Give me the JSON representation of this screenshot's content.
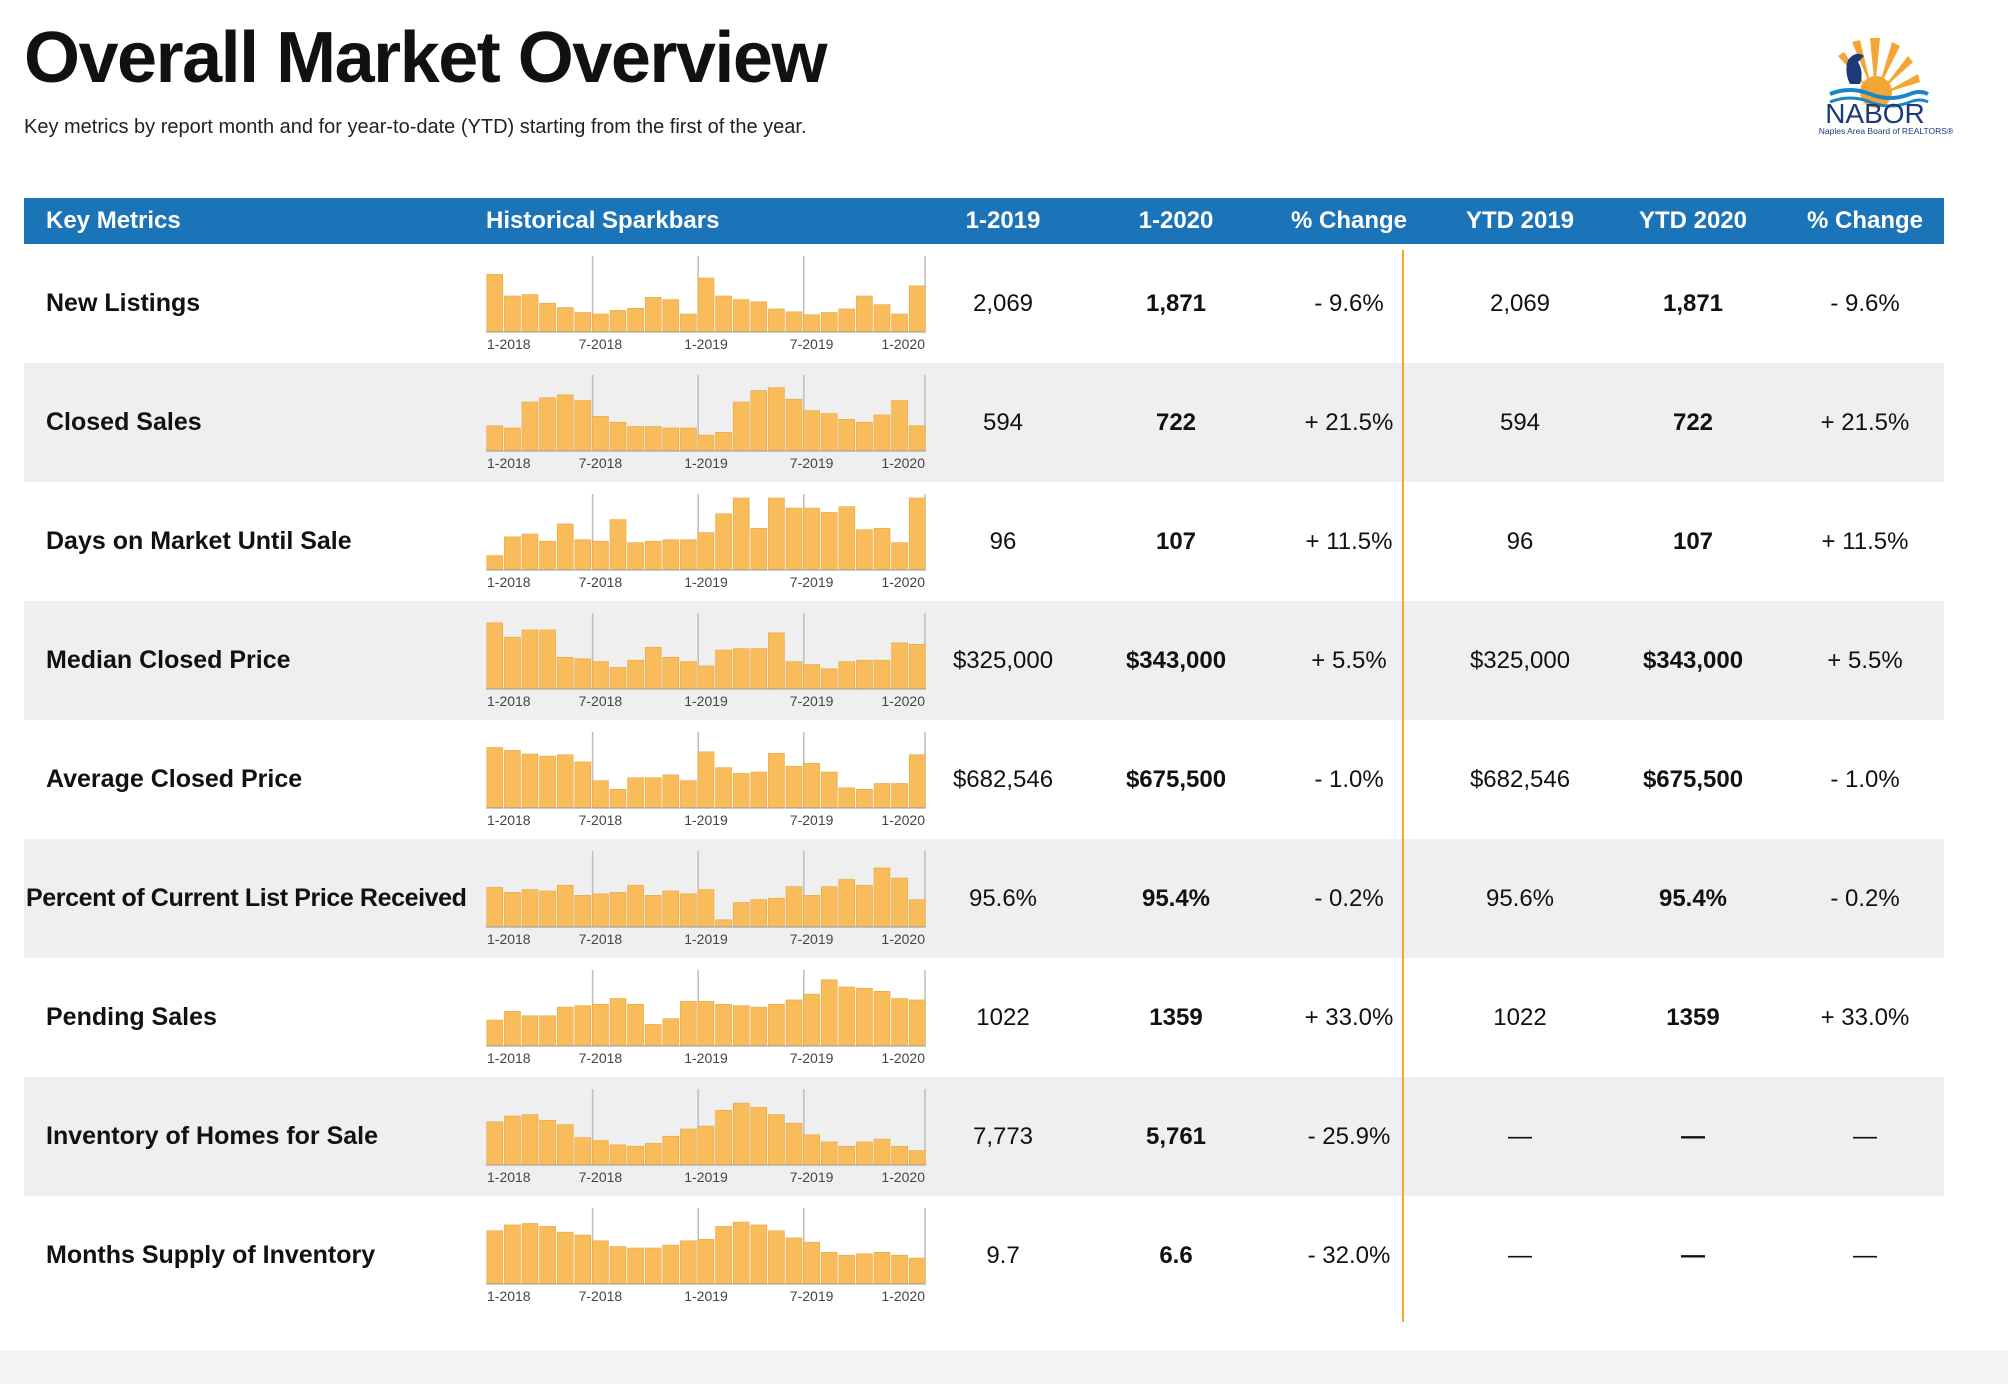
{
  "page": {
    "title": "Overall Market Overview",
    "subtitle": "Key metrics by report month and for year-to-date (YTD) starting from the first of the year."
  },
  "logo": {
    "name": "NABOR",
    "subtitle": "Naples Area Board of REALTORS®"
  },
  "columns": [
    "Key Metrics",
    "Historical Sparkbars",
    "1-2019",
    "1-2020",
    "% Change",
    "YTD 2019",
    "YTD 2020",
    "% Change"
  ],
  "spark_ticks": [
    "1-2018",
    "7-2018",
    "1-2019",
    "7-2019",
    "1-2020"
  ],
  "colors": {
    "header": "#1c74b8",
    "bar": "#f8bc5b",
    "bar_edge": "#e9a53f",
    "divider": "#f3a634",
    "row_alt": "#efefef"
  },
  "rows": [
    {
      "label": "New Listings",
      "m2019": "2,069",
      "m2020": "1,871",
      "mchg": "- 9.6%",
      "y2019": "2,069",
      "y2020": "1,871",
      "ychg": "- 9.6%",
      "spark": [
        80,
        50,
        52,
        40,
        34,
        27,
        25,
        30,
        33,
        48,
        45,
        25,
        75,
        50,
        45,
        42,
        32,
        28,
        24,
        27,
        32,
        50,
        38,
        25,
        64
      ]
    },
    {
      "label": "Closed Sales",
      "m2019": "594",
      "m2020": "722",
      "mchg": "+ 21.5%",
      "y2019": "594",
      "y2020": "722",
      "ychg": "+ 21.5%",
      "spark": [
        35,
        32,
        68,
        74,
        78,
        70,
        48,
        40,
        34,
        34,
        32,
        32,
        22,
        26,
        68,
        84,
        88,
        72,
        56,
        52,
        44,
        40,
        50,
        70,
        35
      ]
    },
    {
      "label": "Days on Market Until Sale",
      "m2019": "96",
      "m2020": "107",
      "mchg": "+ 11.5%",
      "y2019": "96",
      "y2020": "107",
      "ychg": "+ 11.5%",
      "spark": [
        20,
        46,
        50,
        40,
        64,
        42,
        40,
        70,
        38,
        40,
        42,
        42,
        52,
        78,
        100,
        58,
        100,
        86,
        86,
        80,
        88,
        56,
        58,
        38,
        100
      ]
    },
    {
      "label": "Median Closed Price",
      "m2019": "$325,000",
      "m2020": "$343,000",
      "mchg": "+ 5.5%",
      "y2019": "$325,000",
      "y2020": "$343,000",
      "ychg": "+ 5.5%",
      "spark": [
        92,
        72,
        82,
        82,
        44,
        42,
        38,
        30,
        40,
        58,
        44,
        38,
        32,
        54,
        56,
        56,
        78,
        38,
        34,
        28,
        38,
        40,
        40,
        64,
        62
      ]
    },
    {
      "label": "Average Closed Price",
      "m2019": "$682,546",
      "m2020": "$675,500",
      "mchg": "- 1.0%",
      "y2019": "$682,546",
      "y2020": "$675,500",
      "ychg": "- 1.0%",
      "spark": [
        84,
        80,
        75,
        72,
        74,
        64,
        38,
        26,
        42,
        42,
        46,
        38,
        78,
        56,
        48,
        50,
        76,
        58,
        62,
        50,
        28,
        26,
        34,
        34,
        74
      ]
    },
    {
      "label": "Percent of Current List Price Received",
      "m2019": "95.6%",
      "m2020": "95.4%",
      "mchg": "- 0.2%",
      "y2019": "95.6%",
      "y2020": "95.4%",
      "ychg": "- 0.2%",
      "spark": [
        55,
        48,
        52,
        50,
        58,
        44,
        46,
        48,
        58,
        44,
        50,
        46,
        52,
        10,
        34,
        38,
        40,
        56,
        44,
        56,
        66,
        58,
        82,
        68,
        38
      ]
    },
    {
      "label": "Pending Sales",
      "m2019": "1022",
      "m2020": "1359",
      "mchg": "+ 33.0%",
      "y2019": "1022",
      "y2020": "1359",
      "ychg": "+ 33.0%",
      "spark": [
        36,
        48,
        42,
        42,
        54,
        56,
        58,
        66,
        58,
        30,
        38,
        62,
        62,
        58,
        56,
        54,
        58,
        64,
        72,
        92,
        82,
        80,
        76,
        66,
        64
      ]
    },
    {
      "label": "Inventory of Homes for Sale",
      "m2019": "7,773",
      "m2020": "5,761",
      "mchg": "- 25.9%",
      "y2019": "—",
      "y2020": "—",
      "ychg": "—",
      "spark": [
        60,
        68,
        70,
        62,
        56,
        38,
        34,
        28,
        26,
        30,
        40,
        50,
        54,
        76,
        86,
        80,
        70,
        58,
        42,
        32,
        26,
        32,
        36,
        26,
        20
      ]
    },
    {
      "label": "Months Supply of Inventory",
      "m2019": "9.7",
      "m2020": "6.6",
      "mchg": "- 32.0%",
      "y2019": "—",
      "y2020": "—",
      "ychg": "—",
      "spark": [
        74,
        82,
        84,
        80,
        72,
        68,
        60,
        52,
        50,
        50,
        54,
        60,
        62,
        80,
        86,
        82,
        74,
        64,
        58,
        44,
        40,
        42,
        44,
        40,
        36
      ]
    }
  ]
}
